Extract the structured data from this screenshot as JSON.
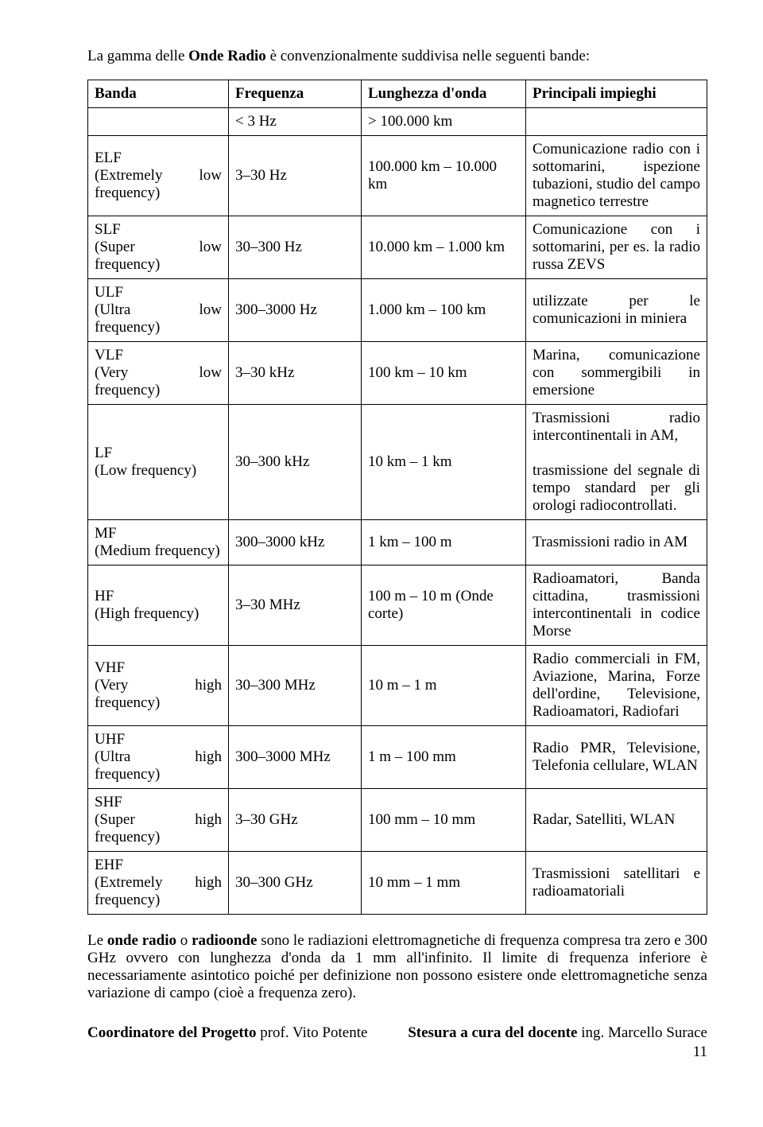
{
  "intro": {
    "prefix": "La gamma delle ",
    "bold": "Onde Radio",
    "suffix": " è convenzionalmente suddivisa nelle seguenti bande:"
  },
  "table": {
    "headers": {
      "band": "Banda",
      "freq": "Frequenza",
      "wave": "Lunghezza d'onda",
      "use": "Principali impieghi"
    },
    "rows": [
      {
        "band_html": "",
        "freq": "< 3 Hz",
        "wave": "> 100.000 km",
        "use": ""
      },
      {
        "band_html": "ELF<br>(Extremely low frequency)",
        "freq": "3–30 Hz",
        "wave": "100.000 km – 10.000 km",
        "use": "Comunicazione radio con i sottomarini, ispezione tubazioni, studio del campo magnetico terrestre"
      },
      {
        "band_html": "SLF<br>(Super low frequency)",
        "freq": "30–300 Hz",
        "wave": "10.000 km – 1.000 km",
        "use": "Comunicazione con i sottomarini, per es. la radio russa ZEVS"
      },
      {
        "band_html": "ULF<br>(Ultra low frequency)",
        "freq": "300–3000 Hz",
        "wave": "1.000 km – 100 km",
        "use": "utilizzate per le comunicazioni in miniera"
      },
      {
        "band_html": "VLF<br>(Very low frequency)",
        "freq": "3–30 kHz",
        "wave": "100 km – 10 km",
        "use": "Marina, comunicazione con sommergibili in emersione"
      },
      {
        "band_html": "LF<br>(Low frequency)",
        "freq": "30–300 kHz",
        "wave": "10 km – 1 km",
        "use_html": "Trasmissioni radio intercontinentali in AM,<br><br>trasmissione del segnale di tempo standard per gli orologi radiocontrollati."
      },
      {
        "band_html": "MF<br>(Medium frequency)",
        "freq": "300–3000 kHz",
        "wave": "1 km – 100 m",
        "use": "Trasmissioni radio in AM"
      },
      {
        "band_html": "HF<br>(High frequency)",
        "freq": "3–30 MHz",
        "wave": "100 m – 10 m (Onde corte)",
        "use": "Radioamatori, Banda cittadina, trasmissioni intercontinentali in codice Morse"
      },
      {
        "band_html": "VHF<br>(Very high frequency)",
        "freq": "30–300 MHz",
        "wave": "10 m – 1 m",
        "use": "Radio commerciali in FM, Aviazione, Marina, Forze dell'ordine, Televisione, Radioamatori, Radiofari"
      },
      {
        "band_html": "UHF<br>(Ultra high frequency)",
        "freq": "300–3000 MHz",
        "wave": "1 m – 100 mm",
        "use": "Radio PMR, Televisione, Telefonia cellulare, WLAN"
      },
      {
        "band_html": "SHF<br>(Super high frequency)",
        "freq": "3–30 GHz",
        "wave": "100 mm – 10 mm",
        "use": "Radar, Satelliti, WLAN"
      },
      {
        "band_html": "EHF<br>(Extremely high frequency)",
        "freq": "30–300 GHz",
        "wave": "10 mm – 1 mm",
        "use": "Trasmissioni satellitari e radioamatoriali"
      }
    ]
  },
  "para": {
    "p1a": "Le ",
    "p1b": "onde radio",
    "p1c": " o ",
    "p1d": "radioonde",
    "p1e": " sono le radiazioni elettromagnetiche di frequenza compresa tra zero e 300 GHz ovvero con lunghezza d'onda da 1 mm all'infinito. Il limite di frequenza inferiore è necessariamente asintotico poiché per definizione non possono esistere onde elettromagnetiche senza variazione di campo (cioè a frequenza zero)."
  },
  "footer": {
    "left_label": "Coordinatore del Progetto",
    "left_name": " prof. Vito Potente",
    "right_label": "Stesura a cura del docente",
    "right_name": " ing. Marcello Surace",
    "page": "11"
  }
}
